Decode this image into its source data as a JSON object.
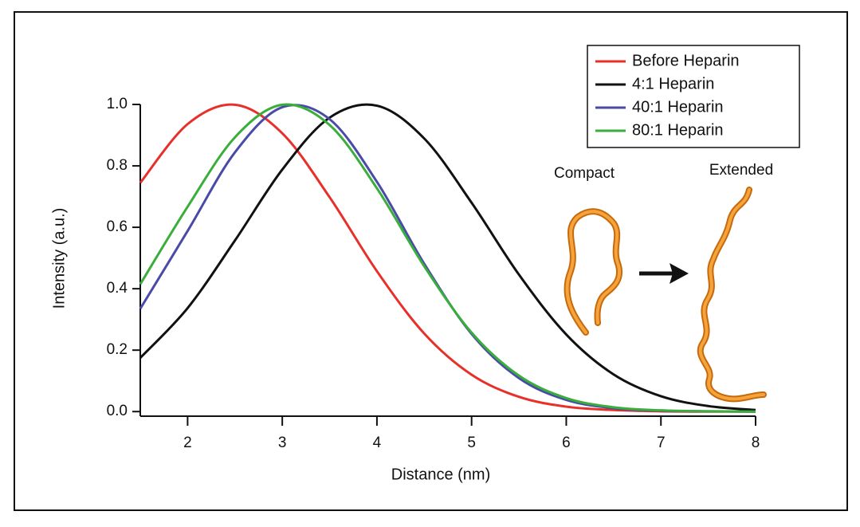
{
  "chart_data": {
    "type": "line",
    "x_label": "Distance (nm)",
    "y_label": "Intensity (a.u.)",
    "x": [
      1.5,
      2,
      2.5,
      3,
      3.5,
      4,
      4.5,
      5,
      5.5,
      6,
      6.5,
      7,
      7.5,
      8
    ],
    "series": [
      {
        "name": "Before Heparin",
        "color": "#e8302a",
        "values": [
          0.745,
          0.936,
          0.999,
          0.906,
          0.698,
          0.457,
          0.254,
          0.12,
          0.048,
          0.016,
          0.005,
          0.001,
          0,
          0
        ]
      },
      {
        "name": "4:1 Heparin",
        "color": "#111111",
        "values": [
          0.175,
          0.337,
          0.557,
          0.788,
          0.957,
          0.996,
          0.889,
          0.68,
          0.446,
          0.251,
          0.121,
          0.05,
          0.018,
          0.005
        ]
      },
      {
        "name": "40:1 Heparin",
        "color": "#4a4aa8",
        "values": [
          0.335,
          0.588,
          0.844,
          0.991,
          0.952,
          0.748,
          0.481,
          0.253,
          0.109,
          0.038,
          0.011,
          0.003,
          0.001,
          0
        ]
      },
      {
        "name": "80:1 Heparin",
        "color": "#3aae3a",
        "values": [
          0.415,
          0.667,
          0.893,
          0.999,
          0.933,
          0.727,
          0.473,
          0.257,
          0.117,
          0.044,
          0.014,
          0.004,
          0.001,
          0
        ]
      }
    ],
    "xlim": [
      1.5,
      8
    ],
    "ylim": [
      -0.015,
      1.0
    ],
    "xticks": [
      2,
      3,
      4,
      5,
      6,
      7,
      8
    ],
    "yticks": [
      {
        "value": 0,
        "label": "0.0"
      },
      0.2,
      0.4,
      0.6,
      0.8,
      {
        "value": 1,
        "label": "1.0"
      }
    ],
    "legend": "upper right",
    "annotations": [
      "Compact",
      "Extended"
    ]
  }
}
